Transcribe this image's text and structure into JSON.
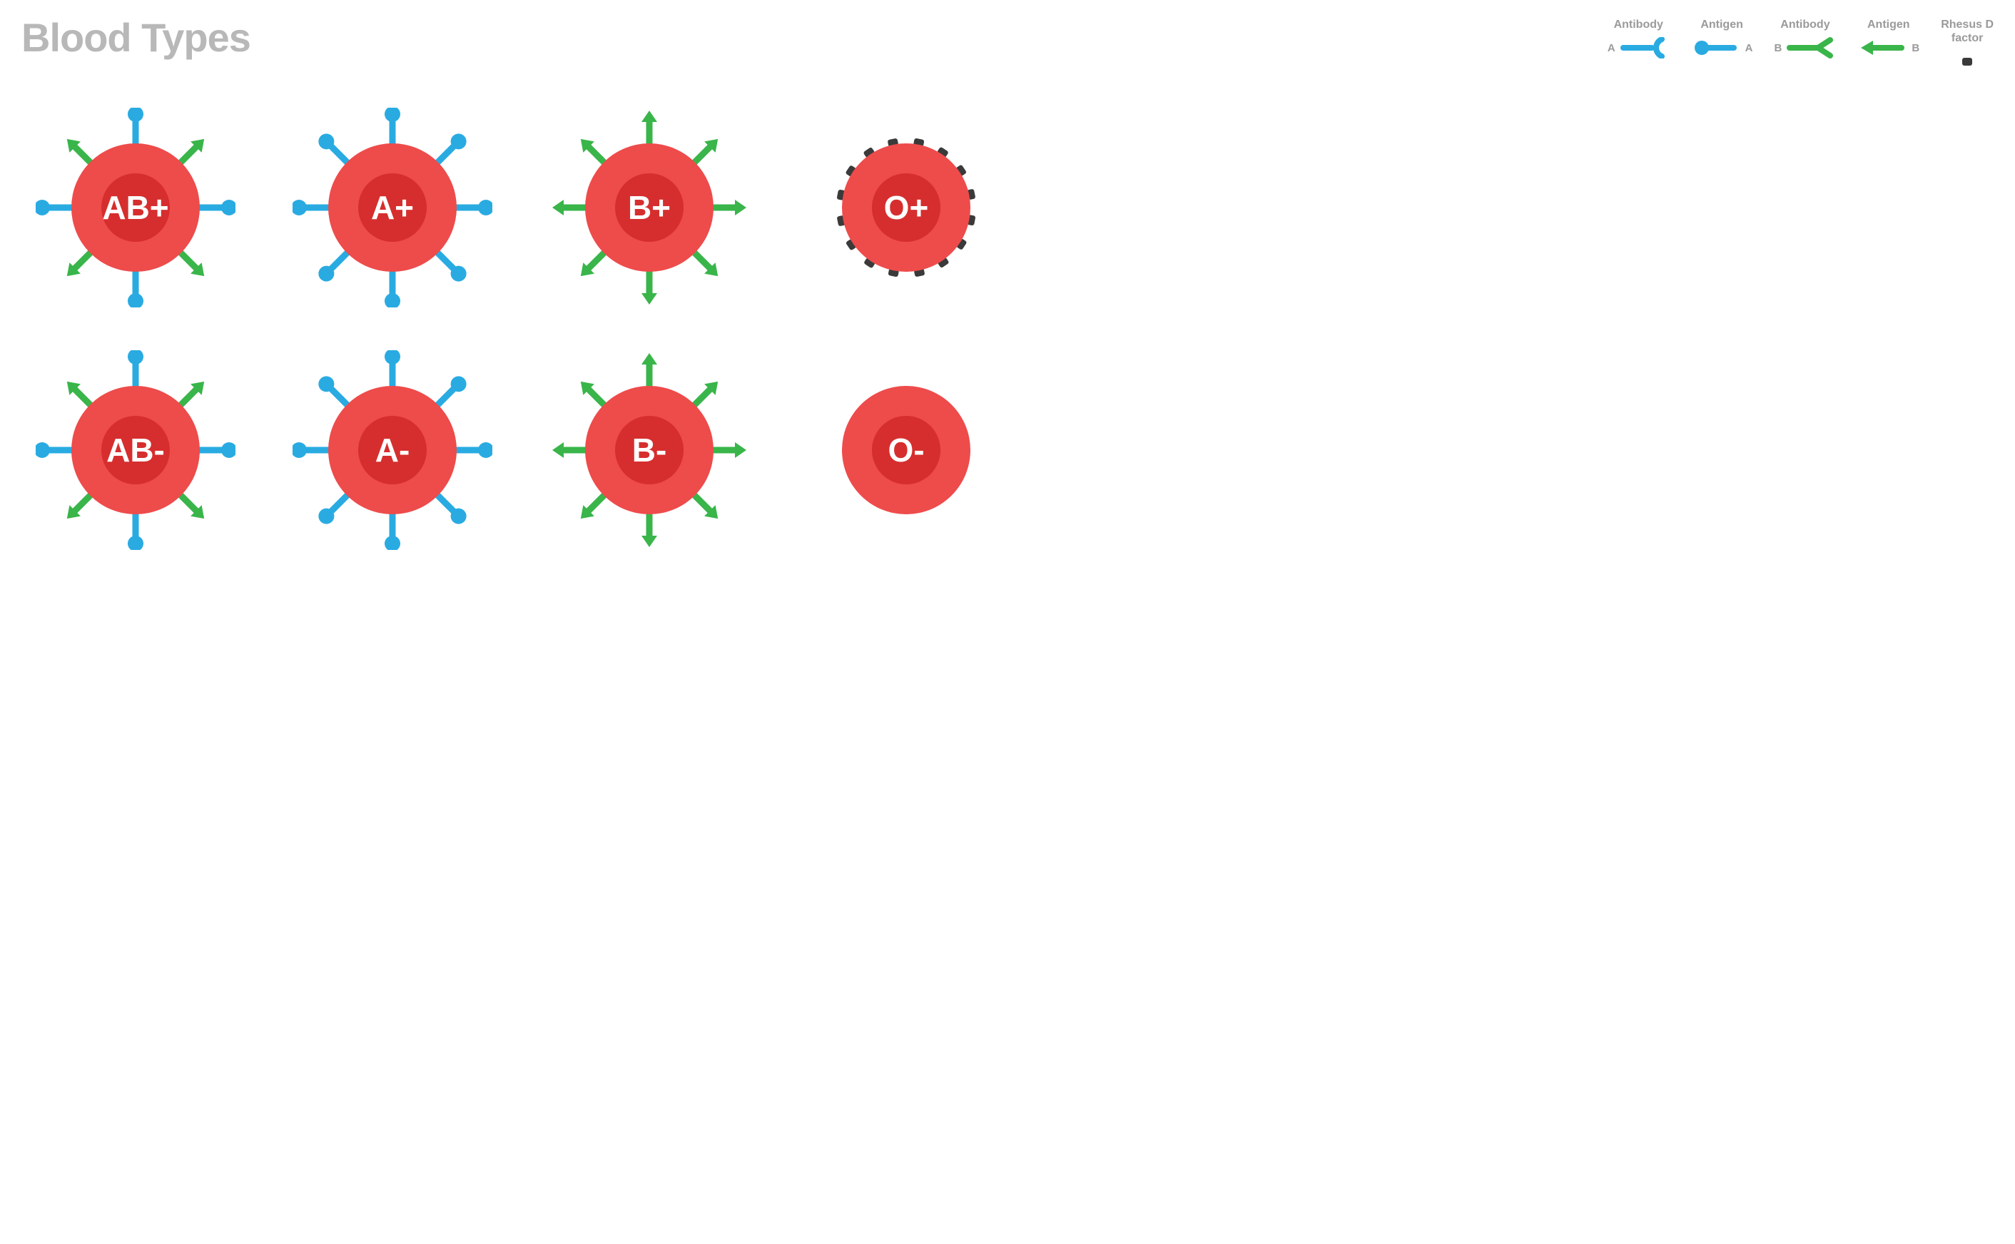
{
  "title": "Blood Types",
  "colors": {
    "cell_outer": "#ee4b4b",
    "cell_inner": "#d62e2e",
    "antigen_a": "#29abe2",
    "antigen_b": "#39b54a",
    "rhesus": "#3a3a3a",
    "label_gray": "#9a9a9a",
    "title_gray": "#b8b8b8"
  },
  "legend": {
    "antibody_a": {
      "label": "Antibody",
      "side": "A"
    },
    "antigen_a": {
      "label": "Antigen",
      "side": "A"
    },
    "antibody_b": {
      "label": "Antibody",
      "side": "B"
    },
    "antigen_b": {
      "label": "Antigen",
      "side": "B"
    },
    "rhesus": {
      "label": "Rhesus D\nfactor"
    }
  },
  "cells": [
    {
      "id": "ab_pos",
      "label": "AB+",
      "antigens": [
        "A",
        "B"
      ],
      "rhesus": true
    },
    {
      "id": "a_pos",
      "label": "A+",
      "antigens": [
        "A"
      ],
      "rhesus": true
    },
    {
      "id": "b_pos",
      "label": "B+",
      "antigens": [
        "B"
      ],
      "rhesus": true
    },
    {
      "id": "o_pos",
      "label": "O+",
      "antigens": [],
      "rhesus": true
    },
    {
      "id": "ab_neg",
      "label": "AB-",
      "antigens": [
        "A",
        "B"
      ],
      "rhesus": false
    },
    {
      "id": "a_neg",
      "label": "A-",
      "antigens": [
        "A"
      ],
      "rhesus": false
    },
    {
      "id": "b_neg",
      "label": "B-",
      "antigens": [
        "B"
      ],
      "rhesus": false
    },
    {
      "id": "o_neg",
      "label": "O-",
      "antigens": [],
      "rhesus": false
    }
  ],
  "geometry": {
    "cell_radius": 90,
    "inner_radius": 48,
    "antigen_stem_len": 32,
    "antigen_ball_r": 11,
    "arrow_len": 32,
    "rhesus_w": 14,
    "rhesus_h": 10,
    "rhesus_gap": 3,
    "label_fontsize": 46
  }
}
